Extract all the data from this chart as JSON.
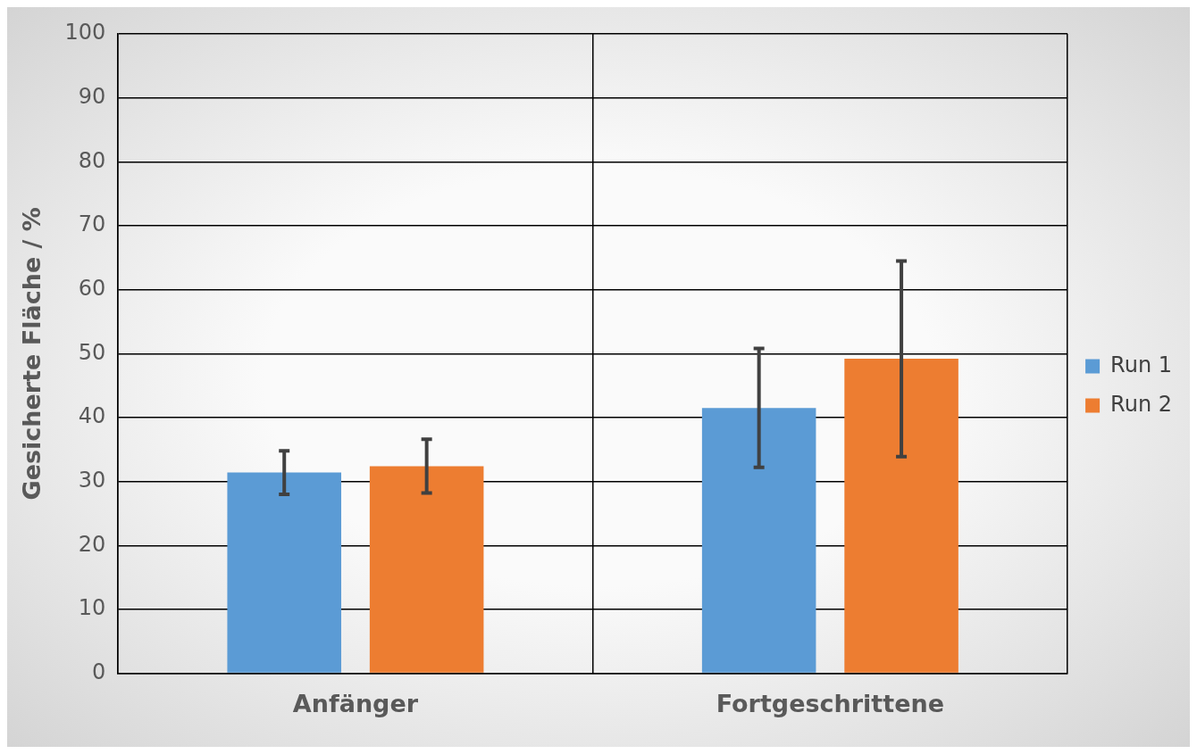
{
  "chart_data": {
    "type": "bar",
    "ylabel": "Gesicherte Fläche / %",
    "categories": [
      "Anfänger",
      "Fortgeschrittene"
    ],
    "series": [
      {
        "name": "Run 1",
        "color": "#5b9bd5",
        "values": [
          31.4,
          41.5
        ],
        "errors": [
          3.4,
          9.3
        ]
      },
      {
        "name": "Run 2",
        "color": "#ed7d31",
        "values": [
          32.4,
          49.2
        ],
        "errors": [
          4.2,
          15.3
        ]
      }
    ],
    "ylim": [
      0,
      100
    ],
    "yticks": [
      0,
      10,
      20,
      30,
      40,
      50,
      60,
      70,
      80,
      90,
      100
    ],
    "grid": true,
    "legend": "right"
  }
}
